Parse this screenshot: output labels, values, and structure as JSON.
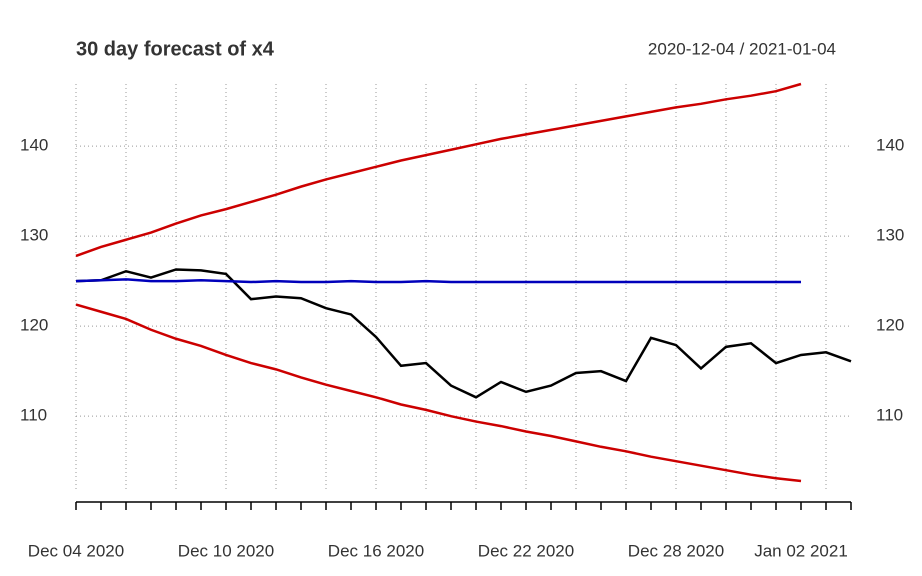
{
  "chart_data": {
    "type": "line",
    "title": "30 day forecast of x4",
    "subtitle": "2020-12-04 / 2021-01-04",
    "x": [
      "2020-12-04",
      "2020-12-05",
      "2020-12-06",
      "2020-12-07",
      "2020-12-08",
      "2020-12-09",
      "2020-12-10",
      "2020-12-11",
      "2020-12-12",
      "2020-12-13",
      "2020-12-14",
      "2020-12-15",
      "2020-12-16",
      "2020-12-17",
      "2020-12-18",
      "2020-12-19",
      "2020-12-20",
      "2020-12-21",
      "2020-12-22",
      "2020-12-23",
      "2020-12-24",
      "2020-12-25",
      "2020-12-26",
      "2020-12-27",
      "2020-12-28",
      "2020-12-29",
      "2020-12-30",
      "2020-12-31",
      "2021-01-01",
      "2021-01-02",
      "2021-01-03",
      "2021-01-04"
    ],
    "xlim": [
      "2020-12-04",
      "2021-01-04"
    ],
    "xticks": [
      {
        "value": "2020-12-04",
        "label": "Dec 04 2020"
      },
      {
        "value": "2020-12-10",
        "label": "Dec 10 2020"
      },
      {
        "value": "2020-12-16",
        "label": "Dec 16 2020"
      },
      {
        "value": "2020-12-22",
        "label": "Dec 22 2020"
      },
      {
        "value": "2020-12-28",
        "label": "Dec 28 2020"
      },
      {
        "value": "2021-01-02",
        "label": "Jan 02 2021"
      }
    ],
    "ylim": [
      101.8,
      146.9
    ],
    "yticks": [
      110,
      120,
      130,
      140
    ],
    "grid": true,
    "series": [
      {
        "color": "#000000",
        "values": [
          125.0,
          125.1,
          126.1,
          125.4,
          126.3,
          126.2,
          125.8,
          123.0,
          123.3,
          123.1,
          122.0,
          121.3,
          118.8,
          115.6,
          115.9,
          113.4,
          112.1,
          113.8,
          112.7,
          113.4,
          114.8,
          115.0,
          113.9,
          118.7,
          117.9,
          115.3,
          117.7,
          118.1,
          115.9,
          116.8,
          117.1,
          116.1
        ]
      },
      {
        "color": "#0000bb",
        "values": [
          125.0,
          125.1,
          125.2,
          125.0,
          125.0,
          125.1,
          125.0,
          124.9,
          125.0,
          124.9,
          124.9,
          125.0,
          124.9,
          124.9,
          125.0,
          124.9,
          124.9,
          124.9,
          124.9,
          124.9,
          124.9,
          124.9,
          124.9,
          124.9,
          124.9,
          124.9,
          124.9,
          124.9,
          124.9,
          124.9,
          null,
          null
        ]
      },
      {
        "color": "#cc0000",
        "values": [
          127.8,
          128.8,
          129.6,
          130.4,
          131.4,
          132.3,
          133.0,
          133.8,
          134.6,
          135.5,
          136.3,
          137.0,
          137.7,
          138.4,
          139.0,
          139.6,
          140.2,
          140.8,
          141.3,
          141.8,
          142.3,
          142.8,
          143.3,
          143.8,
          144.3,
          144.7,
          145.2,
          145.6,
          146.1,
          146.9,
          null,
          null
        ]
      },
      {
        "color": "#cc0000",
        "values": [
          122.4,
          121.6,
          120.8,
          119.6,
          118.6,
          117.8,
          116.8,
          115.9,
          115.2,
          114.3,
          113.5,
          112.8,
          112.1,
          111.3,
          110.7,
          110.0,
          109.4,
          108.9,
          108.3,
          107.8,
          107.2,
          106.6,
          106.1,
          105.5,
          105.0,
          104.5,
          104.0,
          103.5,
          103.1,
          102.8,
          null,
          null
        ]
      }
    ]
  }
}
